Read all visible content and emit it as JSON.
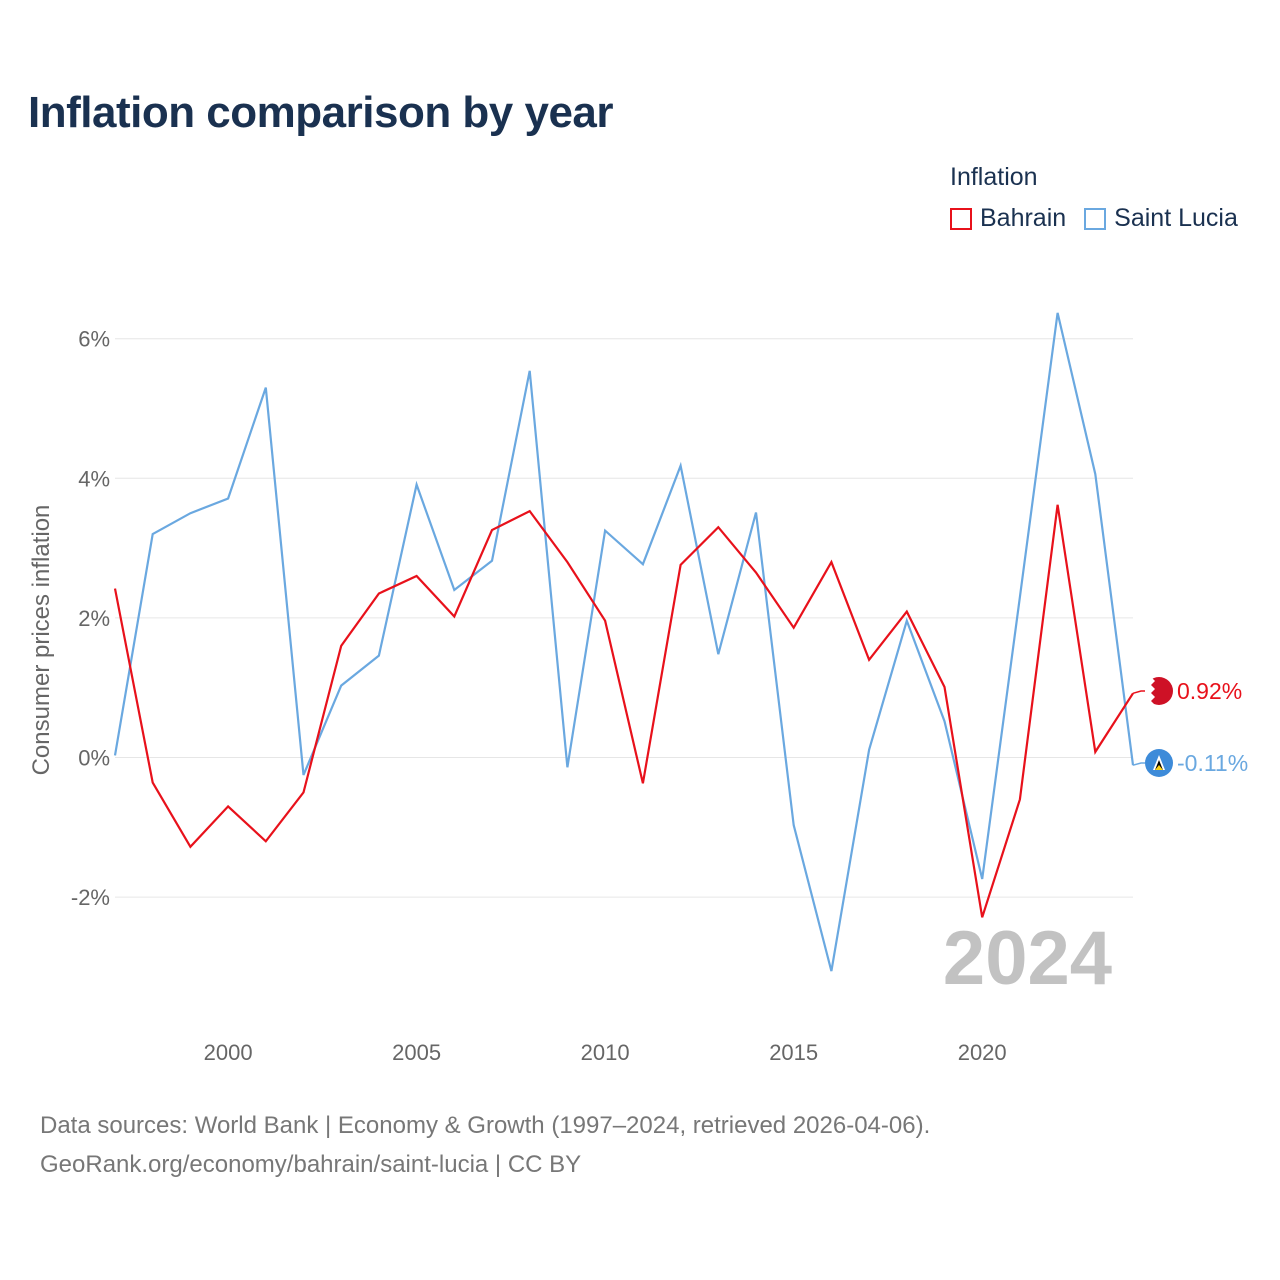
{
  "title": "Inflation comparison by year",
  "legend": {
    "title": "Inflation",
    "items": [
      {
        "label": "Bahrain",
        "color": "#e8111b"
      },
      {
        "label": "Saint Lucia",
        "color": "#6aa8e0"
      }
    ]
  },
  "watermark_year": "2024",
  "footer": {
    "line1": "Data sources: World Bank | Economy & Growth (1997–2024, retrieved 2026-04-06).",
    "line2": "GeoRank.org/economy/bahrain/saint-lucia | CC BY"
  },
  "chart_data": {
    "type": "line",
    "title": "Inflation comparison by year",
    "xlabel": "",
    "ylabel": "Consumer prices inflation",
    "ylim": [
      -3.5,
      6.5
    ],
    "xlim": [
      1997,
      2024
    ],
    "y_ticks": [
      -2,
      0,
      2,
      4,
      6
    ],
    "y_tick_labels": [
      "-2%",
      "0%",
      "2%",
      "4%",
      "6%"
    ],
    "x_ticks": [
      2000,
      2005,
      2010,
      2015,
      2020
    ],
    "x_tick_labels": [
      "2000",
      "2005",
      "2010",
      "2015",
      "2020"
    ],
    "x": [
      1997,
      1998,
      1999,
      2000,
      2001,
      2002,
      2003,
      2004,
      2005,
      2006,
      2007,
      2008,
      2009,
      2010,
      2011,
      2012,
      2013,
      2014,
      2015,
      2016,
      2017,
      2018,
      2019,
      2020,
      2021,
      2022,
      2023,
      2024
    ],
    "series": [
      {
        "name": "Bahrain",
        "color": "#e8111b",
        "end_label": "0.92%",
        "values": [
          2.42,
          -0.36,
          -1.28,
          -0.7,
          -1.2,
          -0.5,
          1.6,
          2.35,
          2.6,
          2.02,
          3.26,
          3.53,
          2.8,
          1.96,
          -0.37,
          2.76,
          3.3,
          2.65,
          1.86,
          2.8,
          1.4,
          2.09,
          1.01,
          -2.29,
          -0.6,
          3.62,
          0.08,
          0.92
        ]
      },
      {
        "name": "Saint Lucia",
        "color": "#6aa8e0",
        "end_label": "-0.11%",
        "values": [
          0.03,
          3.2,
          3.5,
          3.71,
          5.3,
          -0.25,
          1.03,
          1.46,
          3.91,
          2.4,
          2.82,
          5.54,
          -0.14,
          3.25,
          2.77,
          4.18,
          1.48,
          3.51,
          -0.97,
          -3.06,
          0.11,
          1.96,
          0.52,
          -1.74,
          2.3,
          6.37,
          4.06,
          -0.11
        ]
      }
    ]
  }
}
